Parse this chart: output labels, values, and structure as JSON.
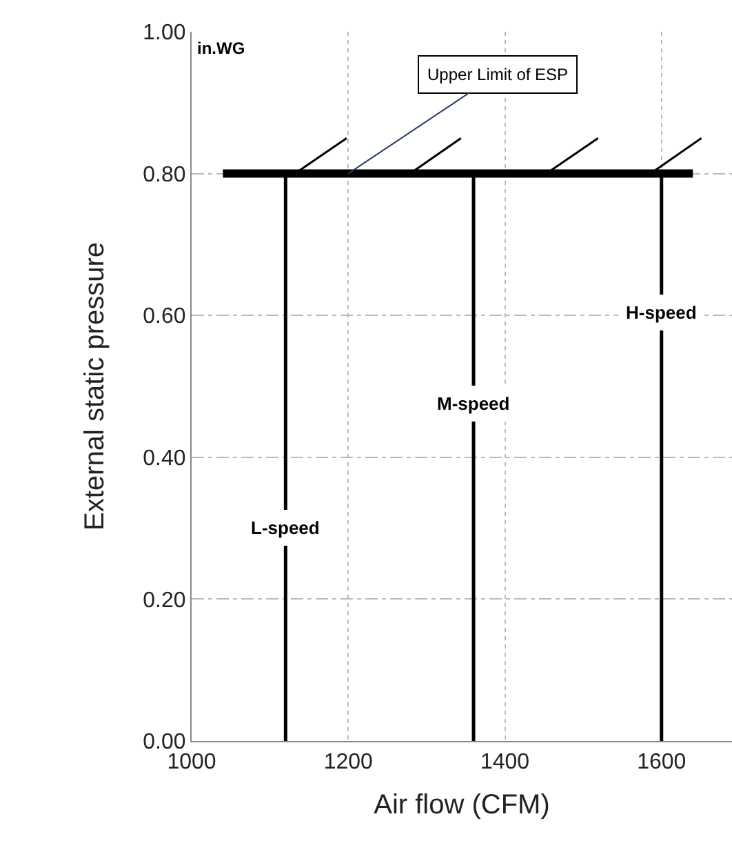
{
  "chart_data": {
    "type": "line",
    "xlabel": "Air flow (CFM)",
    "ylabel": "External static pressure",
    "xlim": [
      1000,
      1690
    ],
    "xticks": [
      1000,
      1200,
      1400,
      1600
    ],
    "ylim": [
      0,
      1
    ],
    "yticks": [
      {
        "value": 0,
        "label": "0.00"
      },
      {
        "value": 0.2,
        "label": "0.20"
      },
      {
        "value": 0.4,
        "label": "0.40"
      },
      {
        "value": 0.6,
        "label": "0.60"
      },
      {
        "value": 0.8,
        "label": "0.80"
      },
      {
        "value": 1,
        "label": "1.00"
      }
    ],
    "grid": true,
    "marker": "none",
    "line_style": "solid",
    "series": [
      {
        "color": "#000000",
        "x": [
          1040,
          1640
        ],
        "values": [
          0.8,
          0.8
        ]
      },
      {
        "color": "#000000",
        "x": [
          1132,
          1198,
          null,
          1279,
          1344,
          null,
          1453,
          1519,
          null,
          1586,
          1651
        ],
        "values": [
          0.8,
          0.85,
          null,
          0.8,
          0.85,
          null,
          0.8,
          0.85,
          null,
          0.8,
          0.85
        ]
      }
    ],
    "ref_lines": [
      {
        "axis": "x",
        "value": 1120,
        "label": "L-speed",
        "color": "#000000"
      },
      {
        "axis": "x",
        "value": 1360,
        "label": "M-speed",
        "color": "#000000"
      },
      {
        "axis": "x",
        "value": 1600,
        "label": "H-speed",
        "color": "#000000"
      }
    ],
    "annotations": [
      {
        "text": "Upper Limit of ESP",
        "x": 1200,
        "y": 0.8
      },
      "in.WG"
    ]
  }
}
